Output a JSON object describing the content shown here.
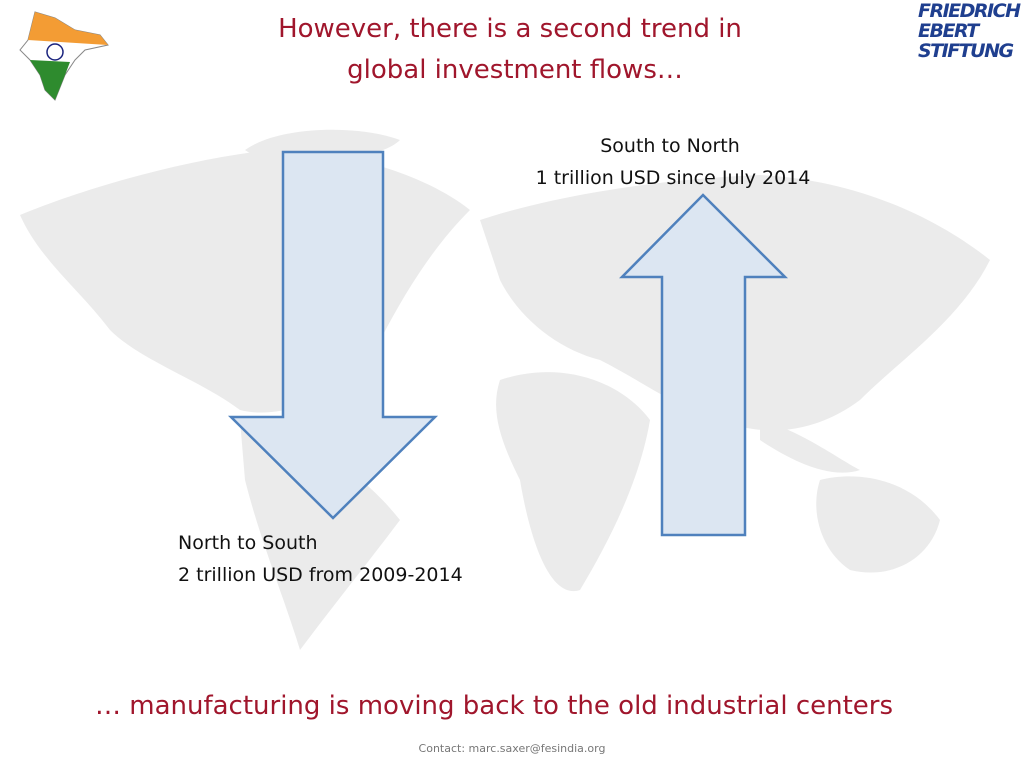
{
  "header": {
    "title_lines": [
      "However, there is a second trend in",
      "global investment flows…"
    ],
    "logo_lines": [
      "FRIEDRICH",
      "EBERT",
      "STIFTUNG"
    ]
  },
  "flows": [
    {
      "label_lines": [
        "North to South",
        "2 trillion USD from 2009-2014"
      ]
    },
    {
      "label_lines": [
        "South to North",
        "1 trillion USD since July 2014"
      ]
    }
  ],
  "conclusion": "… manufacturing is moving back to the old industrial centers",
  "footer": "Contact: marc.saxer@fesindia.org"
}
